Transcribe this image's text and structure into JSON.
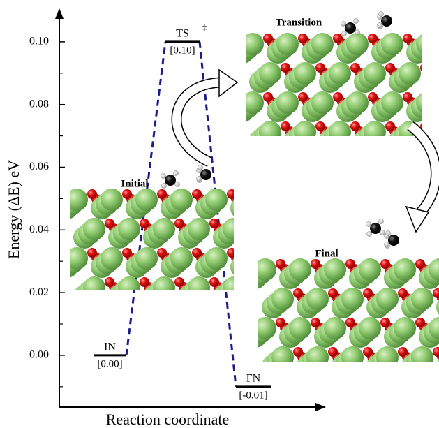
{
  "chart_data": {
    "type": "energy_profile",
    "categories": [
      "IN",
      "TS",
      "FN"
    ],
    "values": [
      0,
      0.1,
      -0.01
    ],
    "value_labels": [
      "[0.00]",
      "[0.10]",
      "[-0.01]"
    ],
    "color": "#000000",
    "connector_color": "#1c1c8a",
    "ylim": [
      -0.0165,
      0.11
    ],
    "yticks": [
      {
        "value": 0,
        "label": "0.00"
      },
      0.02,
      0.04,
      0.06,
      0.08,
      {
        "value": 0.1,
        "label": "0.10"
      }
    ],
    "minor_yticks": [
      -0.01,
      0.01,
      0.03,
      0.05,
      0.07,
      0.09
    ],
    "xlabel": "Reaction coordinate",
    "ylabel": "Energy (ΔE) eV",
    "annotations": [
      "‡",
      "Initial",
      "Transition",
      "Final"
    ]
  }
}
